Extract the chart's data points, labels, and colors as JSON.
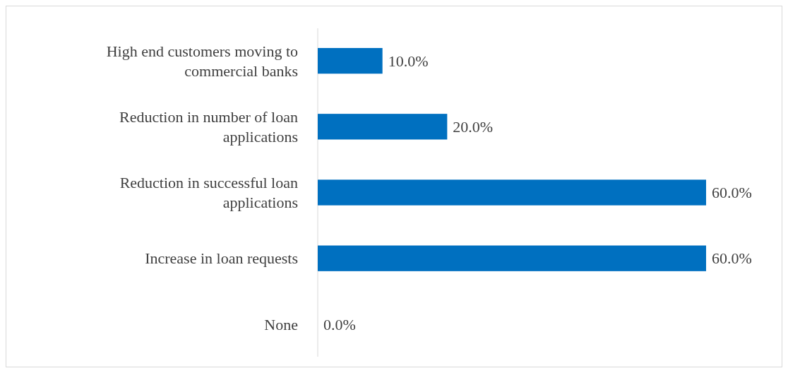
{
  "chart_data": {
    "type": "bar",
    "orientation": "horizontal",
    "categories": [
      "High end customers moving to commercial banks",
      "Reduction in number of loan applications",
      "Reduction in successful loan applications",
      "Increase in loan requests",
      "None"
    ],
    "values": [
      10,
      20,
      60,
      60,
      0
    ],
    "value_labels": [
      "10.0%",
      "20.0%",
      "60.0%",
      "60.0%",
      "0.0%"
    ],
    "color": "#0070c0"
  }
}
